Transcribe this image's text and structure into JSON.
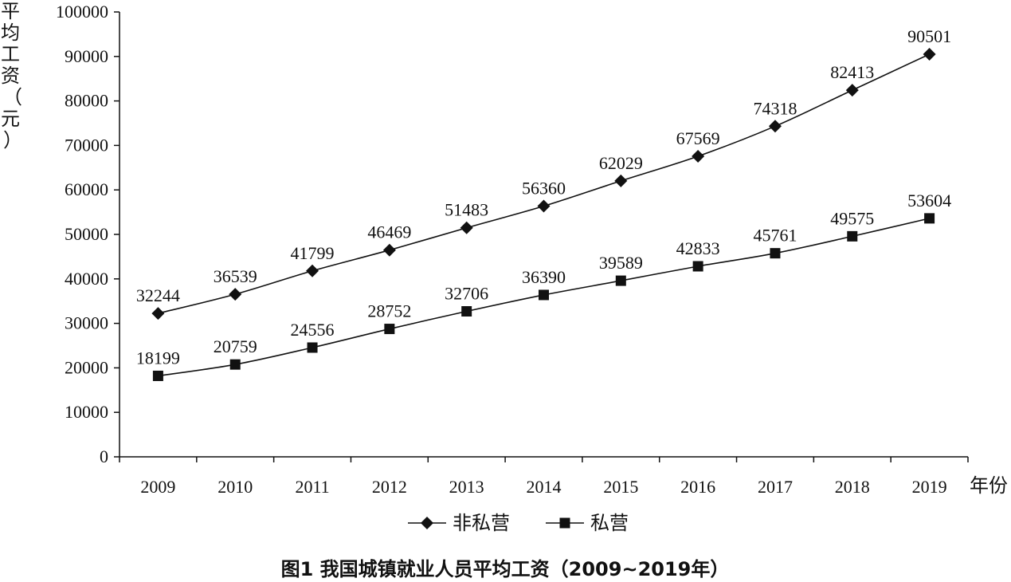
{
  "chart_data": {
    "type": "line",
    "title": "",
    "caption": "图1  我国城镇就业人员平均工资（2009~2019年）",
    "xlabel": "年份",
    "ylabel": "平均工资（元）",
    "ylim": [
      0,
      100000
    ],
    "y_ticks": [
      0,
      10000,
      20000,
      30000,
      40000,
      50000,
      60000,
      70000,
      80000,
      90000,
      100000
    ],
    "categories": [
      "2009",
      "2010",
      "2011",
      "2012",
      "2013",
      "2014",
      "2015",
      "2016",
      "2017",
      "2018",
      "2019"
    ],
    "grid": false,
    "legend_position": "bottom-center",
    "series": [
      {
        "name": "非私营",
        "marker": "diamond",
        "values": [
          32244,
          36539,
          41799,
          46469,
          51483,
          56360,
          62029,
          67569,
          74318,
          82413,
          90501
        ]
      },
      {
        "name": "私营",
        "marker": "square",
        "values": [
          18199,
          20759,
          24556,
          28752,
          32706,
          36390,
          39589,
          42833,
          45761,
          49575,
          53604
        ]
      }
    ]
  }
}
